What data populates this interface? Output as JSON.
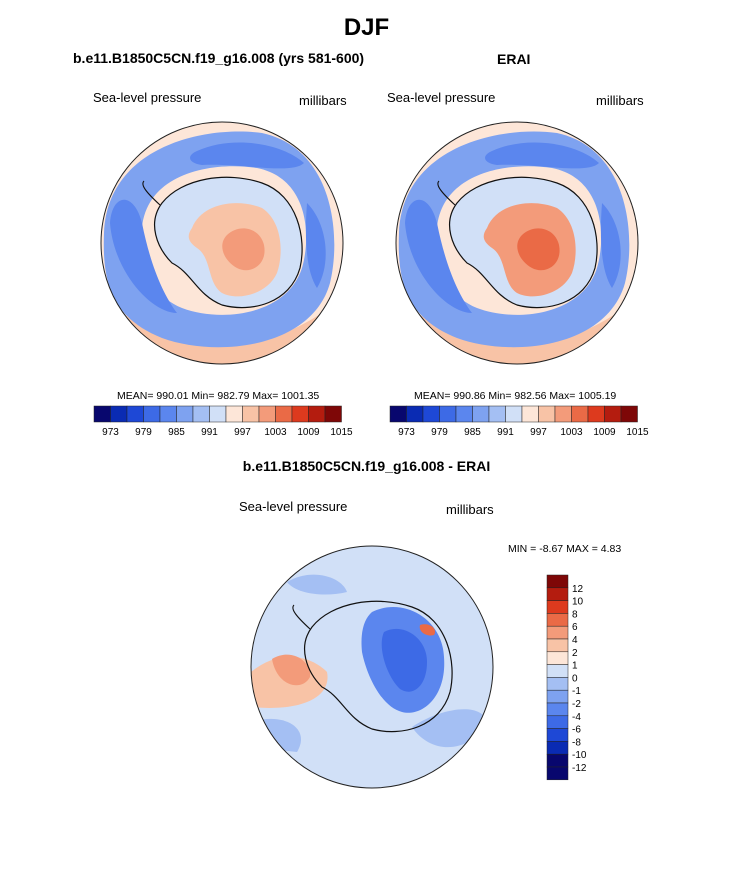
{
  "title": "DJF",
  "colors": {
    "cool_to_warm": [
      "#08076e",
      "#0a2bb3",
      "#1e48d6",
      "#3d6ae6",
      "#5b86ee",
      "#7ea2f0",
      "#a4bff3",
      "#d1e0f7",
      "#fde6d8",
      "#f8c3a6",
      "#f39b7a",
      "#ea6a46",
      "#dd3a1e",
      "#b41c0f",
      "#7e0707"
    ]
  },
  "chart_data": [
    {
      "type": "heatmap",
      "projection": "south-polar-stereographic",
      "title": "b.e11.B1850C5CN.f19_g16.008 (yrs 581-600)",
      "variable": "Sea-level pressure",
      "units": "millibars",
      "stats": {
        "mean": "990.01",
        "min": "982.79",
        "max": "1001.35"
      },
      "stats_text": "MEAN= 990.01  Min= 982.79  Max= 1001.35",
      "colorbar": {
        "orientation": "horizontal",
        "levels": [
          970,
          973,
          976,
          979,
          982,
          985,
          988,
          991,
          994,
          997,
          1000,
          1003,
          1006,
          1009,
          1012,
          1015
        ],
        "tick_labels": [
          "973",
          "979",
          "985",
          "991",
          "997",
          "1003",
          "1009",
          "1015"
        ]
      },
      "regions": [
        {
          "name": "ocean-background",
          "value": 996
        },
        {
          "name": "circumpolar-trough",
          "value": 986
        },
        {
          "name": "deep-low-cells",
          "value": 983
        },
        {
          "name": "coastal-band",
          "value": 993
        },
        {
          "name": "east-antarctic-high",
          "value": 999
        },
        {
          "name": "plateau-max",
          "value": 1001
        },
        {
          "name": "outer-rim",
          "value": 999
        }
      ]
    },
    {
      "type": "heatmap",
      "projection": "south-polar-stereographic",
      "title": "ERAI",
      "variable": "Sea-level pressure",
      "units": "millibars",
      "stats": {
        "mean": "990.86",
        "min": "982.56",
        "max": "1005.19"
      },
      "stats_text": "MEAN= 990.86  Min= 982.56  Max= 1005.19",
      "colorbar": {
        "orientation": "horizontal",
        "levels": [
          970,
          973,
          976,
          979,
          982,
          985,
          988,
          991,
          994,
          997,
          1000,
          1003,
          1006,
          1009,
          1012,
          1015
        ],
        "tick_labels": [
          "973",
          "979",
          "985",
          "991",
          "997",
          "1003",
          "1009",
          "1015"
        ]
      },
      "regions": [
        {
          "name": "ocean-background",
          "value": 996
        },
        {
          "name": "circumpolar-trough",
          "value": 986
        },
        {
          "name": "deep-low-cells",
          "value": 983
        },
        {
          "name": "coastal-band",
          "value": 993
        },
        {
          "name": "east-antarctic-high",
          "value": 1001
        },
        {
          "name": "plateau-max",
          "value": 1004
        },
        {
          "name": "outer-rim",
          "value": 999
        }
      ]
    },
    {
      "type": "heatmap",
      "projection": "south-polar-stereographic",
      "title": "b.e11.B1850C5CN.f19_g16.008 - ERAI",
      "variable": "Sea-level pressure",
      "units": "millibars",
      "stats": {
        "min": "-8.67",
        "max": "4.83"
      },
      "stats_text": "MIN =  -8.67 MAX =   4.83",
      "colorbar": {
        "orientation": "vertical",
        "tick_labels": [
          "12",
          "10",
          "8",
          "6",
          "4",
          "2",
          "1",
          "0",
          "-1",
          "-2",
          "-4",
          "-6",
          "-8",
          "-10",
          "-12"
        ]
      },
      "regions": [
        {
          "name": "ocean-background",
          "value": -0.5
        },
        {
          "name": "positive-ridge",
          "value": 1.5
        },
        {
          "name": "pacific-anomaly",
          "value": 3
        },
        {
          "name": "southern-ocean-negative",
          "value": -2
        },
        {
          "name": "east-antarctic-negative",
          "value": -5
        },
        {
          "name": "plateau-min",
          "value": -8
        },
        {
          "name": "local-positive",
          "value": 4
        }
      ]
    }
  ]
}
